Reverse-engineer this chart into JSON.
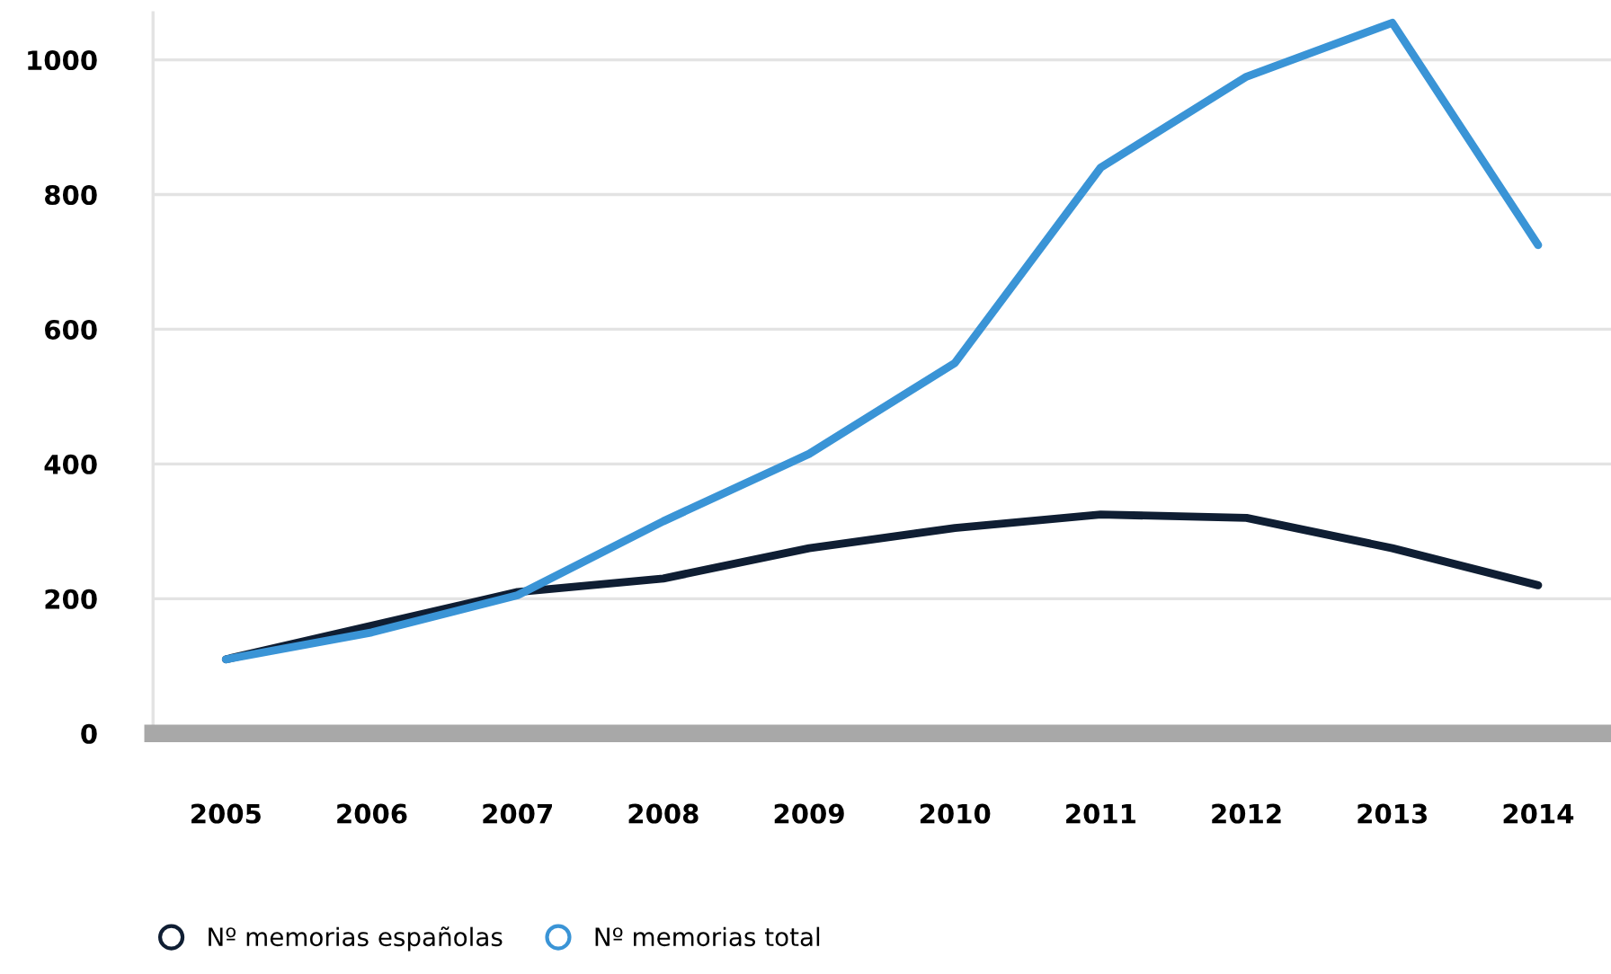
{
  "chart_data": {
    "type": "line",
    "categories": [
      "2005",
      "2006",
      "2007",
      "2008",
      "2009",
      "2010",
      "2011",
      "2012",
      "2013",
      "2014"
    ],
    "series": [
      {
        "name": "Nº memorias españolas",
        "color": "#0f1e33",
        "values": [
          110,
          160,
          210,
          230,
          275,
          305,
          325,
          320,
          275,
          220
        ]
      },
      {
        "name": "Nº memorias total",
        "color": "#3a94d6",
        "values": [
          110,
          150,
          205,
          315,
          415,
          550,
          840,
          975,
          1055,
          725
        ]
      }
    ],
    "ylim": [
      0,
      1070
    ],
    "yticks": [
      0,
      200,
      400,
      600,
      800,
      1000
    ],
    "grid": "y",
    "legend": "bottom left",
    "marker": "none",
    "line_style": "solid"
  }
}
